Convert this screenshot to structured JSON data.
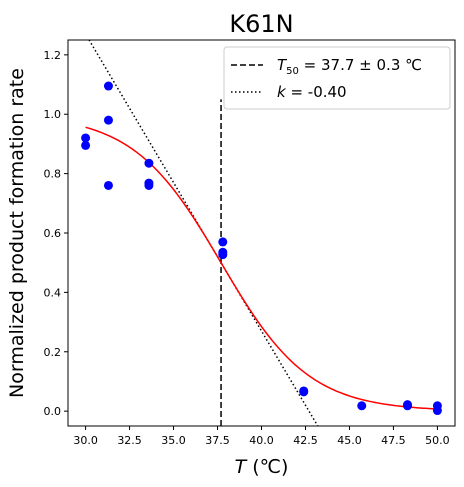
{
  "chart_data": {
    "type": "scatter",
    "title": "K61N",
    "xlabel_var": "T",
    "xlabel_unit": " (℃)",
    "ylabel": "Normalized product formation rate",
    "xlim": [
      29.0,
      51.0
    ],
    "ylim": [
      -0.05,
      1.25
    ],
    "xticks": [
      30.0,
      32.5,
      35.0,
      37.5,
      40.0,
      42.5,
      45.0,
      47.5,
      50.0
    ],
    "xtick_labels": [
      "30.0",
      "32.5",
      "35.0",
      "37.5",
      "40.0",
      "42.5",
      "45.0",
      "47.5",
      "50.0"
    ],
    "yticks": [
      0.0,
      0.2,
      0.4,
      0.6,
      0.8,
      1.0,
      1.2
    ],
    "ytick_labels": [
      "0.0",
      "0.2",
      "0.4",
      "0.6",
      "0.8",
      "1.0",
      "1.2"
    ],
    "points": {
      "color": "#0000ff",
      "x": [
        30.0,
        30.0,
        31.3,
        31.3,
        31.3,
        33.6,
        33.6,
        33.6,
        37.8,
        37.8,
        37.8,
        42.4,
        42.4,
        45.7,
        48.3,
        48.3,
        50.0,
        50.0
      ],
      "y": [
        0.92,
        0.895,
        1.095,
        0.98,
        0.76,
        0.835,
        0.768,
        0.76,
        0.57,
        0.535,
        0.527,
        0.068,
        0.065,
        0.018,
        0.022,
        0.018,
        0.018,
        0.002
      ]
    },
    "fit": {
      "color": "#ff0000",
      "type": "logistic",
      "t50": 37.7,
      "k": -0.4,
      "top": 1.0,
      "bottom": 0.0,
      "x_range": [
        30.0,
        50.0
      ]
    },
    "vline": {
      "x": 37.7,
      "y_range": [
        -0.05,
        1.05
      ],
      "color": "#000000"
    },
    "tangent": {
      "x0": 37.7,
      "y0": 0.5,
      "slope": -0.1,
      "color": "#000000"
    },
    "legend": {
      "position": "top-right",
      "entries": [
        {
          "style": "dashed",
          "var": "T",
          "sub": "50",
          "text": " = 37.7 ± 0.3 ℃"
        },
        {
          "style": "dotted",
          "var": "k",
          "sub": "",
          "text": " = -0.40"
        }
      ]
    }
  }
}
